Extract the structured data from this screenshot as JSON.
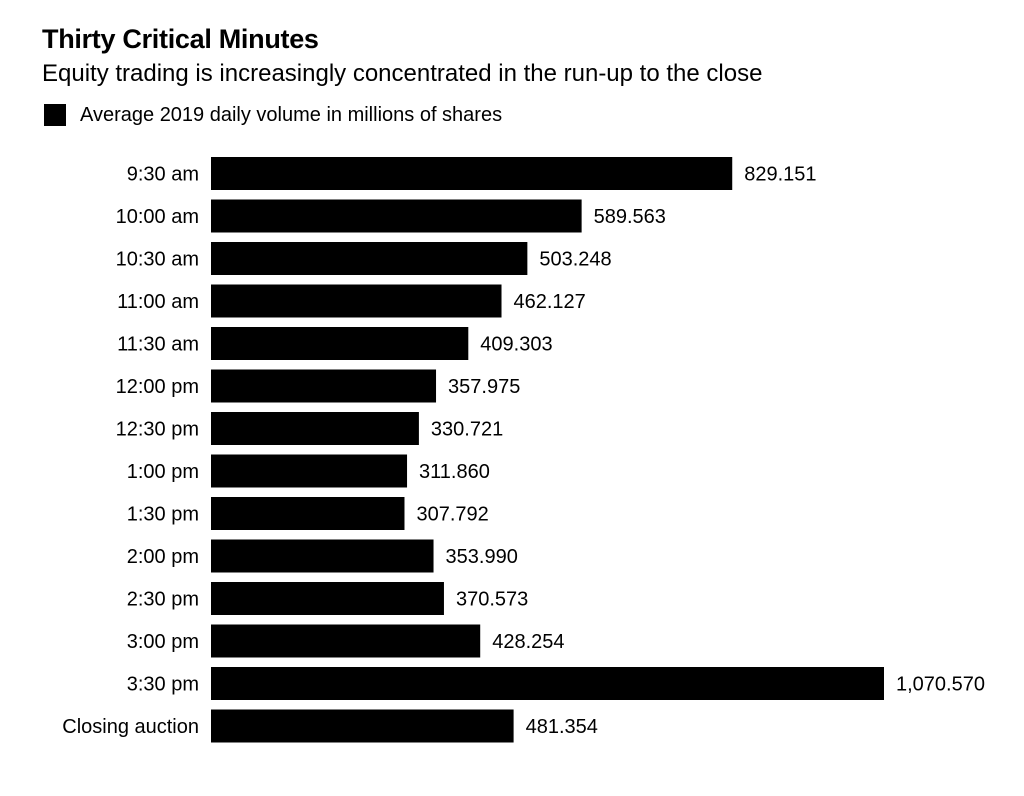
{
  "chart_data": {
    "type": "bar",
    "orientation": "horizontal",
    "title": "Thirty Critical Minutes",
    "subtitle": "Equity trading is increasingly concentrated in the run-up to the close",
    "categories": [
      "9:30 am",
      "10:00 am",
      "10:30 am",
      "11:00 am",
      "11:30 am",
      "12:00 pm",
      "12:30 pm",
      "1:00 pm",
      "1:30 pm",
      "2:00 pm",
      "2:30 pm",
      "3:00 pm",
      "3:30 pm",
      "Closing auction"
    ],
    "series": [
      {
        "name": "Average 2019 daily volume in millions of shares",
        "color": "#000000",
        "values": [
          829.151,
          589.563,
          503.248,
          462.127,
          409.303,
          357.975,
          330.721,
          311.86,
          307.792,
          353.99,
          370.573,
          428.254,
          1070.57,
          481.354
        ],
        "labels": [
          "829.151",
          "589.563",
          "503.248",
          "462.127",
          "409.303",
          "357.975",
          "330.721",
          "311.860",
          "307.792",
          "353.990",
          "370.573",
          "428.254",
          "1,070.570",
          "481.354"
        ]
      }
    ],
    "xlim": [
      0,
      1070.57
    ],
    "grid": false,
    "legend_position": "top-left"
  }
}
